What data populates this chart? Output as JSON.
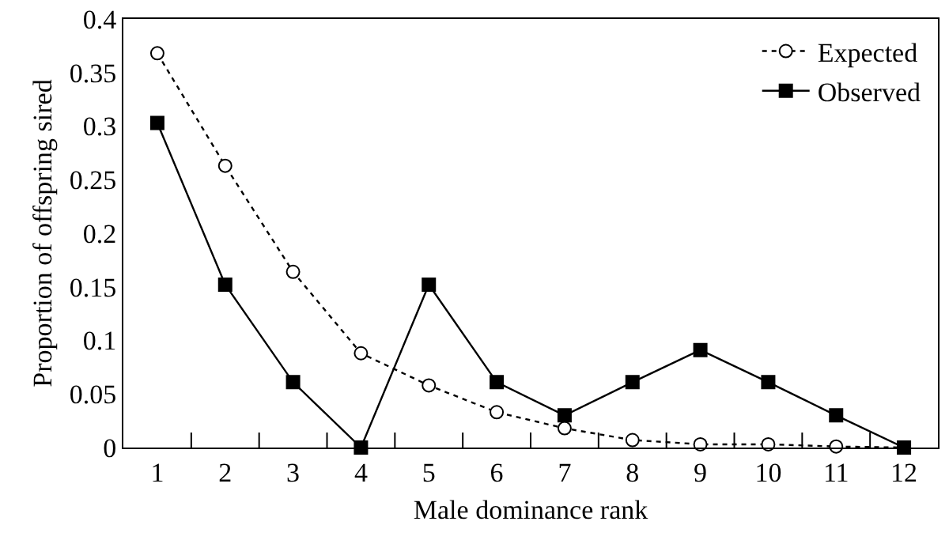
{
  "chart_data": {
    "type": "line",
    "xlabel": "Male dominance rank",
    "ylabel": "Proportion of offspring sired",
    "x": [
      1,
      2,
      3,
      4,
      5,
      6,
      7,
      8,
      9,
      10,
      11,
      12
    ],
    "series": [
      {
        "name": "Expected",
        "color": "#000000",
        "marker": "circle",
        "line_style": "dotted",
        "values": [
          0.368,
          0.263,
          0.164,
          0.088,
          0.058,
          0.033,
          0.018,
          0.007,
          0.003,
          0.003,
          0.001,
          0
        ]
      },
      {
        "name": "Observed",
        "color": "#000000",
        "marker": "square",
        "line_style": "solid",
        "values": [
          0.303,
          0.152,
          0.061,
          0,
          0.152,
          0.061,
          0.03,
          0.061,
          0.091,
          0.061,
          0.03,
          0
        ]
      }
    ],
    "xlim": [
      0.5,
      12.5
    ],
    "xticks": [
      1,
      {
        "value": 1.5,
        "label": null
      },
      2,
      {
        "value": 2.5,
        "label": null
      },
      3,
      {
        "value": 3.5,
        "label": null
      },
      4,
      {
        "value": 4.5,
        "label": null
      },
      5,
      {
        "value": 5.5,
        "label": null
      },
      6,
      {
        "value": 6.5,
        "label": null
      },
      7,
      {
        "value": 7.5,
        "label": null
      },
      8,
      {
        "value": 8.5,
        "label": null
      },
      9,
      {
        "value": 9.5,
        "label": null
      },
      10,
      {
        "value": 10.5,
        "label": null
      },
      11,
      {
        "value": 11.5,
        "label": null
      },
      12
    ],
    "ylim": [
      0,
      0.4
    ],
    "yticks": [
      0,
      0.05,
      0.1,
      0.15,
      0.2,
      0.25,
      0.3,
      0.35,
      0.4
    ],
    "grid": false,
    "legend": "top right"
  }
}
